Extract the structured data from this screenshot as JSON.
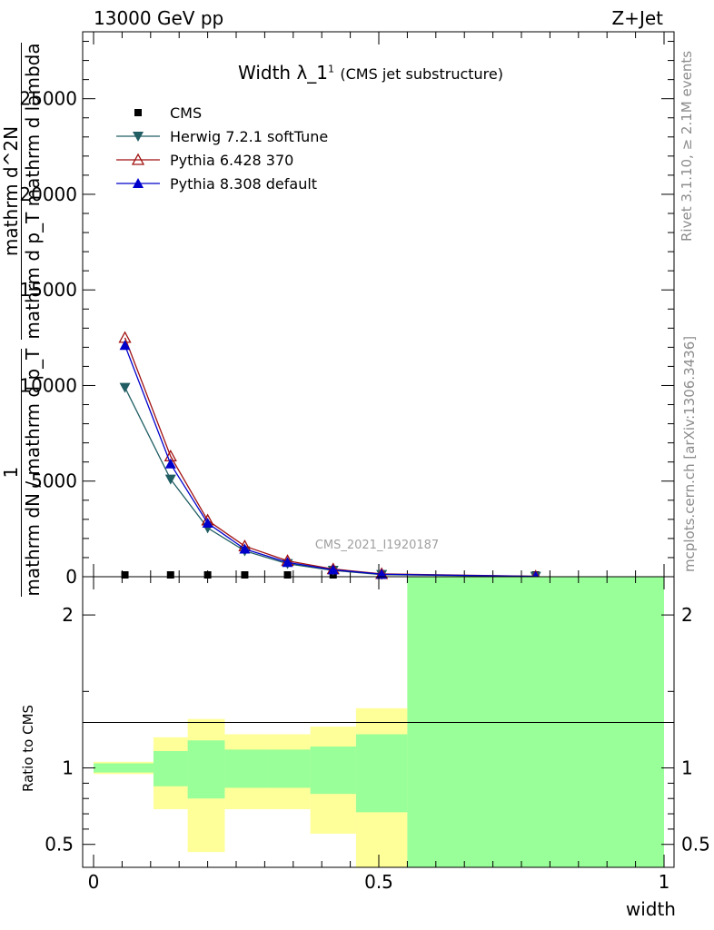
{
  "header": {
    "energy_label": "13000 GeV pp",
    "process_label": "Z+Jet"
  },
  "side_labels": {
    "rivet": "Rivet 3.1.10, ≥ 2.1M events",
    "mcplots": "mcplots.cern.ch [arXiv:1306.3436]"
  },
  "chart_data": [
    {
      "type": "line",
      "title": "Width λ_1",
      "title_superscript": "1",
      "subtitle": "(CMS jet substructure)",
      "watermark": "CMS_2021_I1920187",
      "ylabel_lines": [
        "1",
        "mathrm dN / mathrm d p_T",
        "mathrm d^2N",
        "mathrm d p_T mathrm d lambda"
      ],
      "xlim": [
        0,
        1
      ],
      "ylim": [
        0,
        28500
      ],
      "yticks": [
        {
          "v": 0,
          "label": "0"
        },
        {
          "v": 5000,
          "label": "5000"
        },
        {
          "v": 10000,
          "label": "10000"
        },
        {
          "v": 15000,
          "label": "15000"
        },
        {
          "v": 20000,
          "label": "20000"
        },
        {
          "v": 25000,
          "label": "25000"
        }
      ],
      "legend_position": "top-left",
      "series": [
        {
          "name": "CMS",
          "color": "#000000",
          "marker": "square",
          "x": [
            0.055,
            0.135,
            0.2,
            0.265,
            0.34,
            0.42,
            0.505,
            0.775
          ],
          "values": [
            0,
            0,
            0,
            0,
            0,
            0,
            0,
            0
          ]
        },
        {
          "name": "Herwig 7.2.1 softTune",
          "color": "#215e63",
          "marker": "triangle-down",
          "x": [
            0.055,
            0.135,
            0.2,
            0.265,
            0.34,
            0.42,
            0.505,
            0.775
          ],
          "values": [
            9900,
            5100,
            2550,
            1350,
            680,
            330,
            110,
            15
          ]
        },
        {
          "name": "Pythia 6.428 370",
          "color": "#a01010",
          "marker": "triangle-up-open",
          "x": [
            0.055,
            0.135,
            0.2,
            0.265,
            0.34,
            0.42,
            0.505,
            0.775
          ],
          "values": [
            12500,
            6300,
            2950,
            1600,
            830,
            400,
            150,
            20
          ]
        },
        {
          "name": "Pythia 8.308 default",
          "color": "#0000cc",
          "marker": "triangle-up",
          "x": [
            0.055,
            0.135,
            0.2,
            0.265,
            0.34,
            0.42,
            0.505,
            0.775
          ],
          "values": [
            12100,
            5900,
            2800,
            1450,
            750,
            360,
            130,
            18
          ]
        }
      ]
    },
    {
      "type": "area",
      "ylabel": "Ratio to CMS",
      "xlabel": "width",
      "xlim": [
        0,
        1
      ],
      "ylim": [
        0.35,
        2.25
      ],
      "xticks": [
        {
          "v": 0,
          "label": "0"
        },
        {
          "v": 0.5,
          "label": "0.5"
        },
        {
          "v": 1,
          "label": "1"
        }
      ],
      "yticks": [
        {
          "v": 0.5,
          "label": "0.5"
        },
        {
          "v": 1,
          "label": "1"
        },
        {
          "v": 2,
          "label": "2"
        }
      ],
      "reference_line": 1,
      "bands": {
        "inner_color": "#99ff99",
        "outer_color": "#ffff99",
        "bins": [
          {
            "x0": 0.0,
            "x1": 0.105,
            "inner": [
              0.97,
              1.03
            ],
            "outer": [
              0.96,
              1.04
            ]
          },
          {
            "x0": 0.105,
            "x1": 0.165,
            "inner": [
              0.88,
              1.11
            ],
            "outer": [
              0.73,
              1.2
            ]
          },
          {
            "x0": 0.165,
            "x1": 0.23,
            "inner": [
              0.8,
              1.18
            ],
            "outer": [
              0.45,
              1.32
            ]
          },
          {
            "x0": 0.23,
            "x1": 0.305,
            "inner": [
              0.87,
              1.12
            ],
            "outer": [
              0.73,
              1.22
            ]
          },
          {
            "x0": 0.305,
            "x1": 0.38,
            "inner": [
              0.87,
              1.12
            ],
            "outer": [
              0.73,
              1.22
            ]
          },
          {
            "x0": 0.38,
            "x1": 0.46,
            "inner": [
              0.83,
              1.14
            ],
            "outer": [
              0.57,
              1.27
            ]
          },
          {
            "x0": 0.46,
            "x1": 0.55,
            "inner": [
              0.71,
              1.22
            ],
            "outer": [
              0.35,
              1.39
            ]
          },
          {
            "x0": 0.55,
            "x1": 1.0,
            "inner": [
              0.35,
              2.25
            ],
            "outer": [
              0.35,
              2.25
            ]
          }
        ]
      }
    }
  ]
}
